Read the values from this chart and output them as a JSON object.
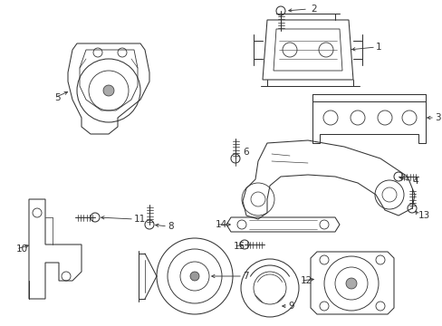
{
  "bg_color": "#ffffff",
  "line_color": "#333333",
  "fig_width": 4.89,
  "fig_height": 3.6,
  "dpi": 100,
  "lw": 0.75
}
